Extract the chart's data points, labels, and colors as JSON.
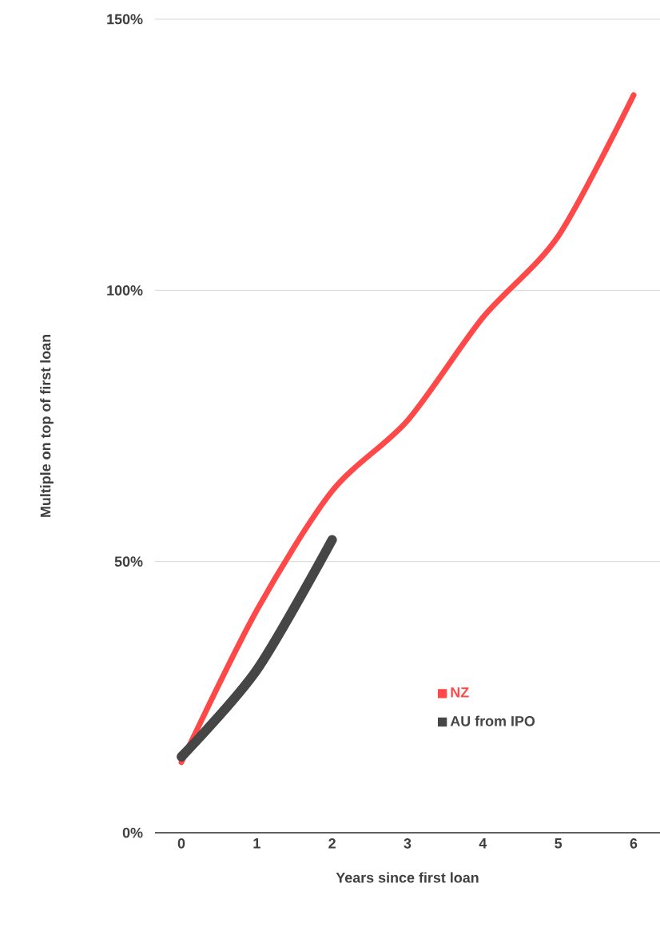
{
  "chart_data": {
    "type": "line",
    "xlabel": "Years since first loan",
    "ylabel": "Multiple on top of first loan",
    "x": [
      0,
      1,
      2,
      3,
      4,
      5,
      6
    ],
    "xlim": [
      -0.35,
      6.35
    ],
    "xticks": [
      0,
      1,
      2,
      3,
      4,
      5,
      6
    ],
    "ylim": [
      0,
      150
    ],
    "yticks": [
      {
        "value": 0,
        "label": "0%"
      },
      {
        "value": 50,
        "label": "50%"
      },
      {
        "value": 100,
        "label": "100%"
      },
      {
        "value": 150,
        "label": "150%"
      }
    ],
    "grid": "y",
    "legend": "bottom right",
    "marker": "none",
    "line_style": "solid",
    "series": [
      {
        "name": "NZ",
        "color": "#ff4848",
        "values": [
          13,
          41,
          63,
          76,
          95,
          110,
          136
        ]
      },
      {
        "name": "AU from IPO",
        "color": "#464646",
        "x": [
          0,
          1,
          2
        ],
        "values": [
          14,
          30,
          54
        ]
      }
    ]
  }
}
